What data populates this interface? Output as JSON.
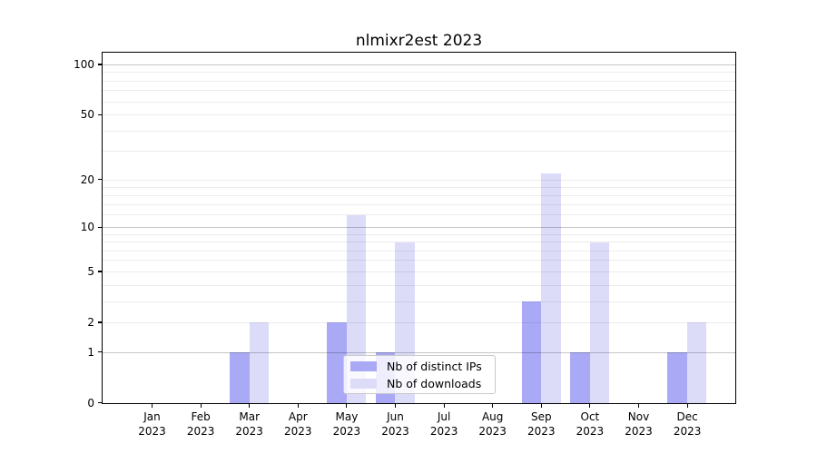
{
  "chart_data": {
    "type": "bar",
    "title": "nlmixr2est 2023",
    "categories": [
      "Jan",
      "Feb",
      "Mar",
      "Apr",
      "May",
      "Jun",
      "Jul",
      "Aug",
      "Sep",
      "Oct",
      "Nov",
      "Dec"
    ],
    "year_label": "2023",
    "series": [
      {
        "name": "Nb of distinct IPs",
        "color": "#a9a9f5",
        "values": [
          0,
          0,
          1,
          0,
          2,
          1,
          0,
          0,
          3,
          1,
          0,
          1
        ]
      },
      {
        "name": "Nb of downloads",
        "color": "#dcdcf9",
        "values": [
          0,
          0,
          2,
          0,
          12,
          8,
          0,
          0,
          22,
          8,
          0,
          2
        ]
      }
    ],
    "y_axis": {
      "scale": "log10(1+y)",
      "tick_values": [
        0,
        1,
        2,
        5,
        10,
        20,
        50,
        100
      ],
      "tick_labels": [
        "0",
        "1",
        "2",
        "5",
        "10",
        "20",
        "50",
        "100"
      ],
      "decade_gridlines": [
        1,
        10,
        100
      ],
      "sub_gridlines": [
        2,
        5,
        20,
        50
      ],
      "minor_gridlines": [
        3,
        4,
        6,
        7,
        8,
        9,
        12,
        14,
        16,
        18,
        30,
        40,
        60,
        70,
        80,
        90
      ],
      "range_top": 120
    },
    "legend_position": "lower center",
    "grid": true,
    "colors": {
      "grid_major": "#c6c6c6",
      "grid_minor": "#ececec",
      "axis": "#000000",
      "background": "#ffffff"
    }
  }
}
